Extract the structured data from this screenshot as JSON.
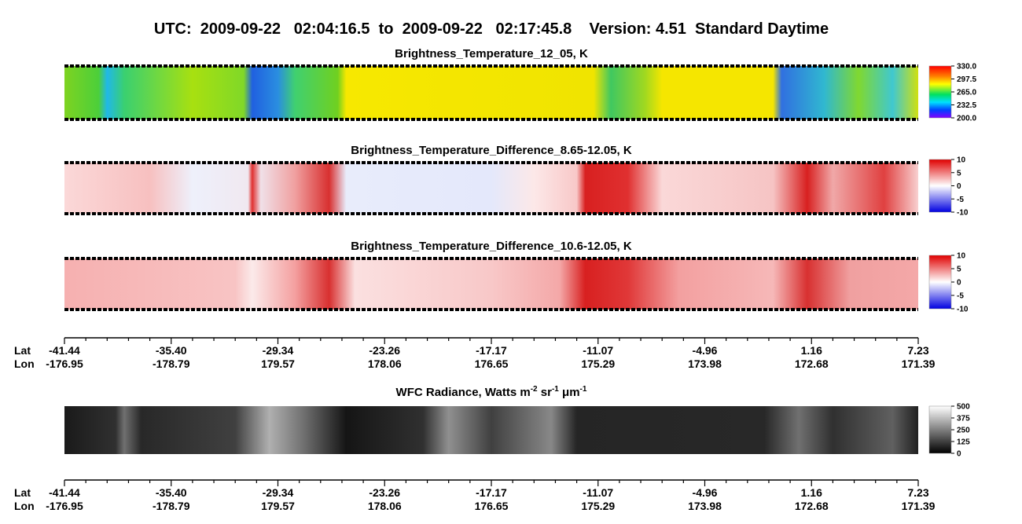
{
  "title": "UTC:  2009-09-22   02:04:16.5  to  2009-09-22   02:17:45.8    Version: 4.51  Standard Daytime",
  "panels": [
    {
      "title": "Brightness_Temperature_12_05, K",
      "colorbar": {
        "lim": [
          200,
          330
        ],
        "ticks": [
          {
            "value": 330,
            "label": "330.0"
          },
          {
            "value": 297.5,
            "label": "297.5"
          },
          {
            "value": 265,
            "label": "265.0"
          },
          {
            "value": 232.5,
            "label": "232.5"
          },
          {
            "value": 200,
            "label": "200.0"
          }
        ]
      }
    },
    {
      "title": "Brightness_Temperature_Difference_8.65-12.05, K",
      "colorbar": {
        "lim": [
          -10,
          10
        ],
        "ticks": [
          10,
          5,
          0,
          -5,
          -10
        ]
      }
    },
    {
      "title": "Brightness_Temperature_Difference_10.6-12.05, K",
      "colorbar": {
        "lim": [
          -10,
          10
        ],
        "ticks": [
          10,
          5,
          0,
          -5,
          -10
        ]
      }
    },
    {
      "title": [
        "WFC Radiance, Watts m",
        "-2",
        " sr",
        "-1",
        " μm",
        "-1"
      ],
      "colorbar": {
        "lim": [
          0,
          500
        ],
        "ticks": [
          500,
          375,
          250,
          125,
          0
        ]
      }
    }
  ],
  "axes": [
    {
      "row_labels": [
        "Lat",
        "Lon"
      ],
      "lat": [
        -41.44,
        -35.4,
        -29.34,
        -23.26,
        -17.17,
        -11.07,
        -4.96,
        1.16,
        7.23
      ],
      "lon": [
        -176.95,
        -178.79,
        179.57,
        178.06,
        176.65,
        175.29,
        173.98,
        172.68,
        171.39
      ]
    },
    {
      "row_labels": [
        "Lat",
        "Lon"
      ],
      "lat": [
        -41.44,
        -35.4,
        -29.34,
        -23.26,
        -17.17,
        -11.07,
        -4.96,
        1.16,
        7.23
      ],
      "lon": [
        -176.95,
        -178.79,
        179.57,
        178.06,
        176.65,
        175.29,
        173.98,
        172.68,
        171.39
      ]
    }
  ]
}
